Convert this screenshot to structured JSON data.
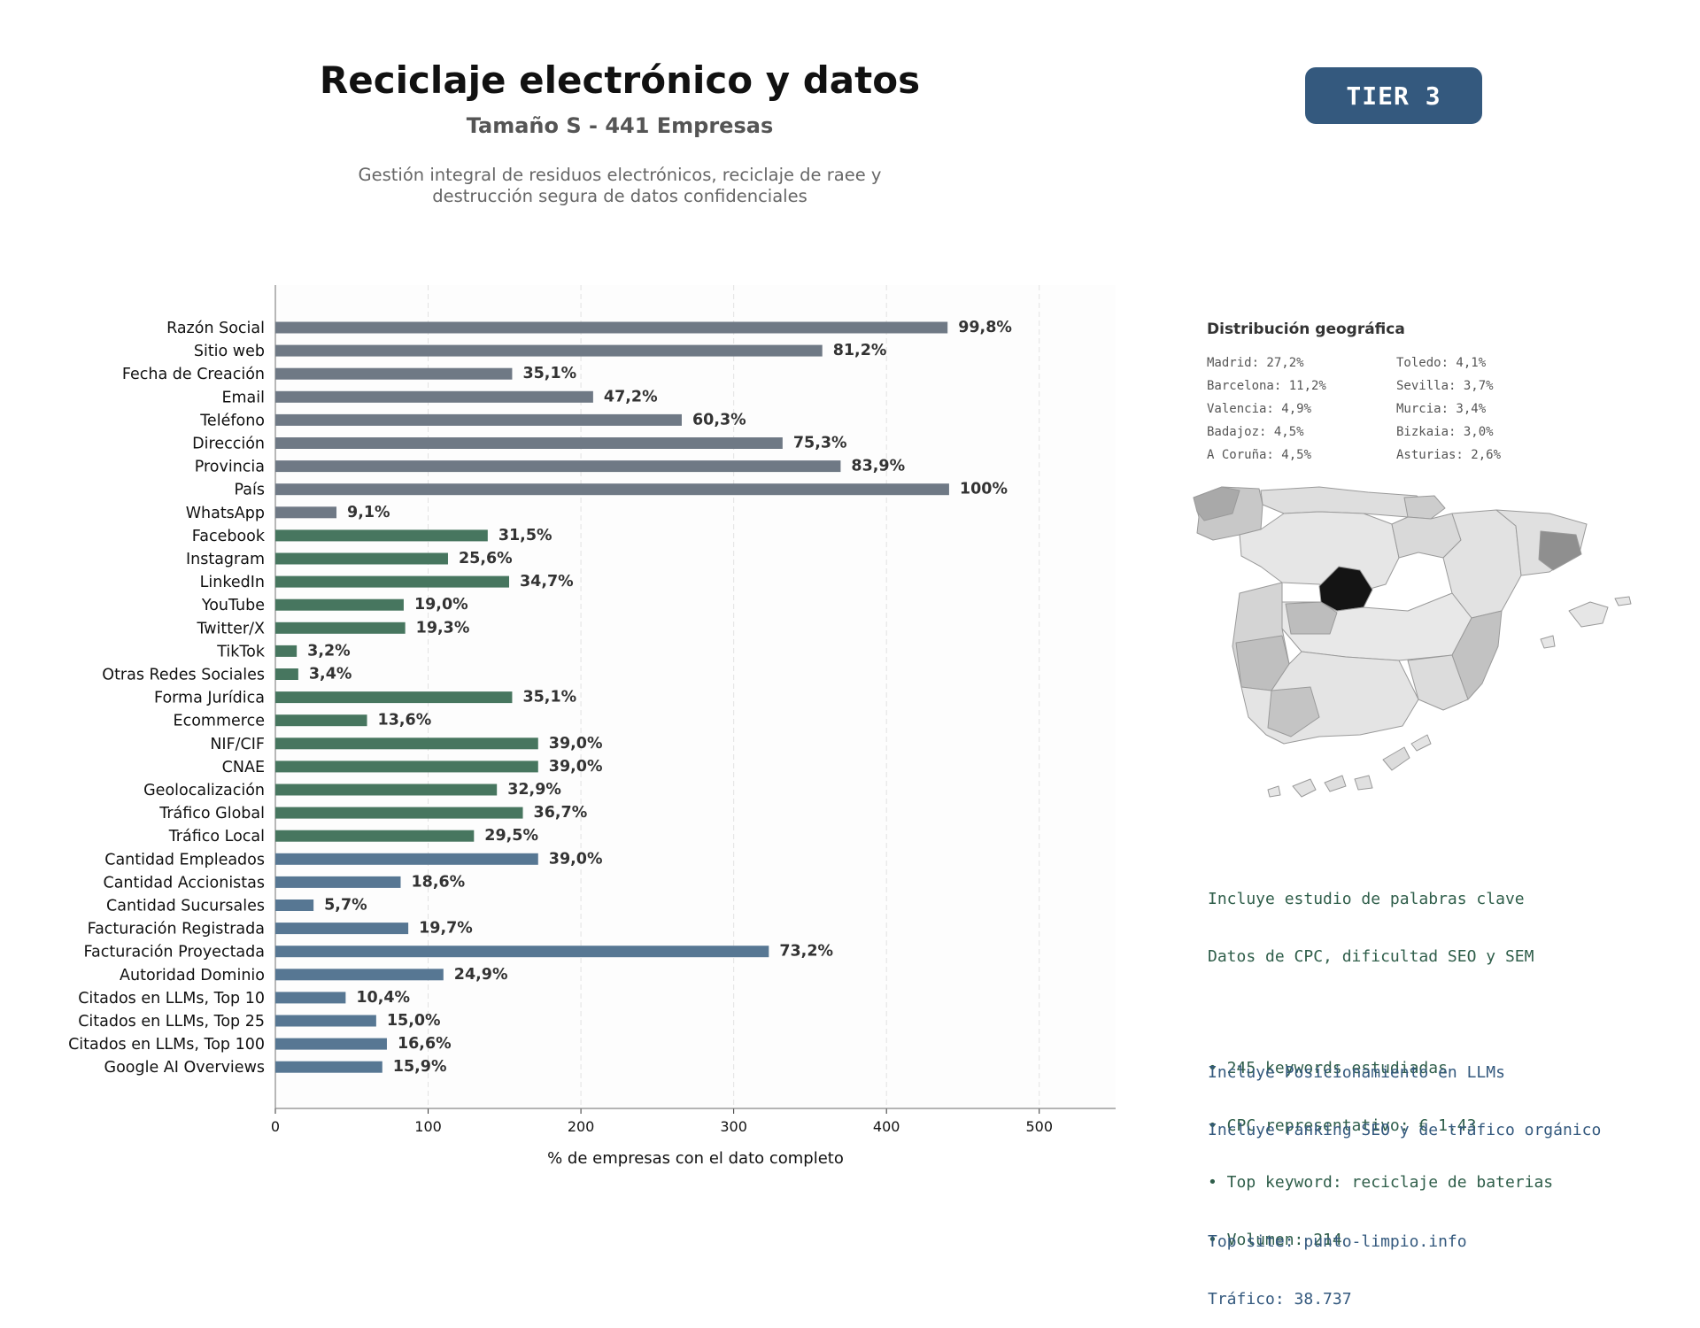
{
  "header": {
    "title": "Reciclaje electrónico y datos",
    "subtitle": "Tamaño S - 441 Empresas",
    "description_line1": "Gestión integral de residuos electrónicos, reciclaje de raee y",
    "description_line2": "destrucción segura de datos confidenciales",
    "tier": "TIER 3"
  },
  "chart_data": {
    "type": "bar",
    "orientation": "horizontal",
    "xlabel": "% de empresas con el dato completo",
    "xlim": [
      0,
      550
    ],
    "xticks": [
      0,
      100,
      200,
      300,
      400,
      500
    ],
    "grid": true,
    "total_companies": 441,
    "bars": [
      {
        "label": "Razón Social",
        "value": 440,
        "pct_label": "99,8%",
        "group": "basic"
      },
      {
        "label": "Sitio web",
        "value": 358,
        "pct_label": "81,2%",
        "group": "basic"
      },
      {
        "label": "Fecha de Creación",
        "value": 155,
        "pct_label": "35,1%",
        "group": "basic"
      },
      {
        "label": "Email",
        "value": 208,
        "pct_label": "47,2%",
        "group": "basic"
      },
      {
        "label": "Teléfono",
        "value": 266,
        "pct_label": "60,3%",
        "group": "basic"
      },
      {
        "label": "Dirección",
        "value": 332,
        "pct_label": "75,3%",
        "group": "basic"
      },
      {
        "label": "Provincia",
        "value": 370,
        "pct_label": "83,9%",
        "group": "basic"
      },
      {
        "label": "País",
        "value": 441,
        "pct_label": "100%",
        "group": "basic"
      },
      {
        "label": "WhatsApp",
        "value": 40,
        "pct_label": "9,1%",
        "group": "basic"
      },
      {
        "label": "Facebook",
        "value": 139,
        "pct_label": "31,5%",
        "group": "social"
      },
      {
        "label": "Instagram",
        "value": 113,
        "pct_label": "25,6%",
        "group": "social"
      },
      {
        "label": "LinkedIn",
        "value": 153,
        "pct_label": "34,7%",
        "group": "social"
      },
      {
        "label": "YouTube",
        "value": 84,
        "pct_label": "19,0%",
        "group": "social"
      },
      {
        "label": "Twitter/X",
        "value": 85,
        "pct_label": "19,3%",
        "group": "social"
      },
      {
        "label": "TikTok",
        "value": 14,
        "pct_label": "3,2%",
        "group": "social"
      },
      {
        "label": "Otras Redes Sociales",
        "value": 15,
        "pct_label": "3,4%",
        "group": "social"
      },
      {
        "label": "Forma Jurídica",
        "value": 155,
        "pct_label": "35,1%",
        "group": "social"
      },
      {
        "label": "Ecommerce",
        "value": 60,
        "pct_label": "13,6%",
        "group": "social"
      },
      {
        "label": "NIF/CIF",
        "value": 172,
        "pct_label": "39,0%",
        "group": "social"
      },
      {
        "label": "CNAE",
        "value": 172,
        "pct_label": "39,0%",
        "group": "social"
      },
      {
        "label": "Geolocalización",
        "value": 145,
        "pct_label": "32,9%",
        "group": "social"
      },
      {
        "label": "Tráfico Global",
        "value": 162,
        "pct_label": "36,7%",
        "group": "social"
      },
      {
        "label": "Tráfico Local",
        "value": 130,
        "pct_label": "29,5%",
        "group": "social"
      },
      {
        "label": "Cantidad Empleados",
        "value": 172,
        "pct_label": "39,0%",
        "group": "business"
      },
      {
        "label": "Cantidad Accionistas",
        "value": 82,
        "pct_label": "18,6%",
        "group": "business"
      },
      {
        "label": "Cantidad Sucursales",
        "value": 25,
        "pct_label": "5,7%",
        "group": "business"
      },
      {
        "label": "Facturación Registrada",
        "value": 87,
        "pct_label": "19,7%",
        "group": "business"
      },
      {
        "label": "Facturación Proyectada",
        "value": 323,
        "pct_label": "73,2%",
        "group": "business"
      },
      {
        "label": "Autoridad Dominio",
        "value": 110,
        "pct_label": "24,9%",
        "group": "business"
      },
      {
        "label": "Citados en LLMs, Top 10",
        "value": 46,
        "pct_label": "10,4%",
        "group": "business"
      },
      {
        "label": "Citados en LLMs, Top 25",
        "value": 66,
        "pct_label": "15,0%",
        "group": "business"
      },
      {
        "label": "Citados en LLMs, Top 100",
        "value": 73,
        "pct_label": "16,6%",
        "group": "business"
      },
      {
        "label": "Google AI Overviews",
        "value": 70,
        "pct_label": "15,9%",
        "group": "business"
      }
    ],
    "colors": {
      "basic": "#6f7985",
      "social": "#47765f",
      "business": "#577793"
    }
  },
  "geo": {
    "title": "Distribución geográfica",
    "left": [
      "Madrid: 27,2%",
      "Barcelona: 11,2%",
      "Valencia: 4,9%",
      "Badajoz: 4,5%",
      "A Coruña: 4,5%"
    ],
    "right": [
      "Toledo: 4,1%",
      "Sevilla: 3,7%",
      "Murcia: 3,4%",
      "Bizkaia: 3,0%",
      "Asturias: 2,6%"
    ]
  },
  "keywords": {
    "line1": "Incluye estudio de palabras clave",
    "line2": "Datos de CPC, dificultad SEO y SEM",
    "bullet1": "• 245 keywords estudiadas",
    "bullet2": "• CPC representativo: € 1.43",
    "bullet3": "• Top keyword: reciclaje de baterias",
    "bullet4": "• Volumen: 214"
  },
  "llm": {
    "line1": "Incluye Posicionamiento en LLMs",
    "line2": "Incluye ranking SEO y de tráfico orgánico",
    "top_site": "Top site: punto-limpio.info",
    "traffic": "Tráfico: 38.737"
  }
}
